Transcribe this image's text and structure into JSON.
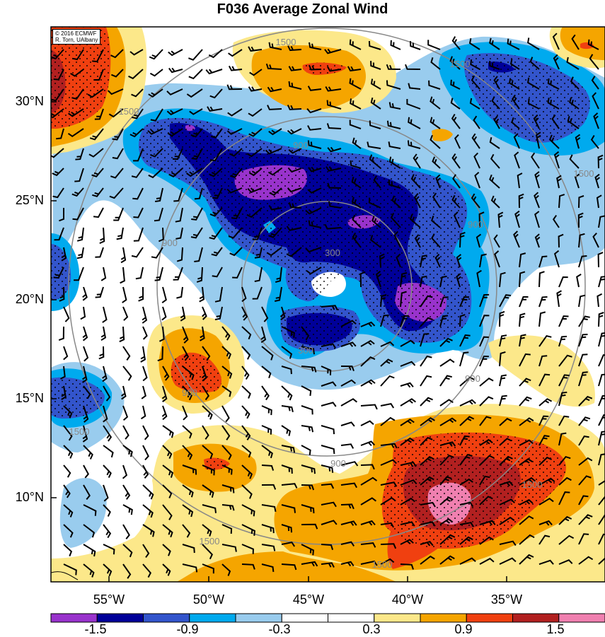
{
  "title": "F036 Average Zonal Wind",
  "credit": {
    "line1": "© 2016 ECMWF",
    "line2": "R. Torn, UAlbany"
  },
  "lat_labels": [
    "30°N",
    "25°N",
    "20°N",
    "15°N",
    "10°N"
  ],
  "lon_labels": [
    "55°W",
    "50°W",
    "45°W",
    "40°W",
    "35°W"
  ],
  "radius_labels": [
    "300",
    "900",
    "1500"
  ],
  "colorbar": {
    "tick_labels": [
      "-1.5",
      "-0.9",
      "-0.3",
      "0.3",
      "0.9",
      "1.5"
    ],
    "colors": [
      "#9933cc",
      "#000099",
      "#3355cc",
      "#00aaee",
      "#99ccee",
      "#ffffff",
      "#ffffff",
      "#fce88a",
      "#f5a500",
      "#f04010",
      "#b22020",
      "#f080b0"
    ]
  },
  "chart_data": {
    "type": "heatmap",
    "title": "F036 Average Zonal Wind",
    "x_axis": {
      "labels": [
        "55°W",
        "50°W",
        "45°W",
        "40°W",
        "35°W"
      ],
      "range": [
        -58.5,
        -30.5
      ]
    },
    "y_axis": {
      "labels": [
        "10°N",
        "15°N",
        "20°N",
        "25°N",
        "30°N"
      ],
      "range": [
        5.5,
        33
      ]
    },
    "contour_levels": [
      -1.5,
      -0.9,
      -0.3,
      0.3,
      0.9,
      1.5
    ],
    "range_rings_km": [
      300,
      900,
      1500
    ],
    "storm_center": {
      "lon": -44.5,
      "lat": 20.5
    },
    "features": [
      {
        "sign": "negative",
        "lon": -47.5,
        "lat": 25.5,
        "peak": -1.6
      },
      {
        "sign": "negative",
        "lon": -41.5,
        "lat": 19.5,
        "peak": -1.5
      },
      {
        "sign": "negative",
        "lon": -45.5,
        "lat": 18.0,
        "peak": -1.2
      },
      {
        "sign": "negative",
        "lon": -36.0,
        "lat": 30.5,
        "peak": -1.2
      },
      {
        "sign": "negative",
        "lon": -56.0,
        "lat": 15.0,
        "peak": -0.9
      },
      {
        "sign": "positive",
        "lon": -38.0,
        "lat": 10.0,
        "peak": 1.6
      },
      {
        "sign": "positive",
        "lon": -51.0,
        "lat": 16.5,
        "peak": 0.9
      },
      {
        "sign": "positive",
        "lon": -50.0,
        "lat": 11.5,
        "peak": 0.9
      },
      {
        "sign": "positive",
        "lon": -57.5,
        "lat": 31.0,
        "peak": 1.0
      },
      {
        "sign": "positive",
        "lon": -44.5,
        "lat": 31.5,
        "peak": 0.9
      }
    ]
  }
}
